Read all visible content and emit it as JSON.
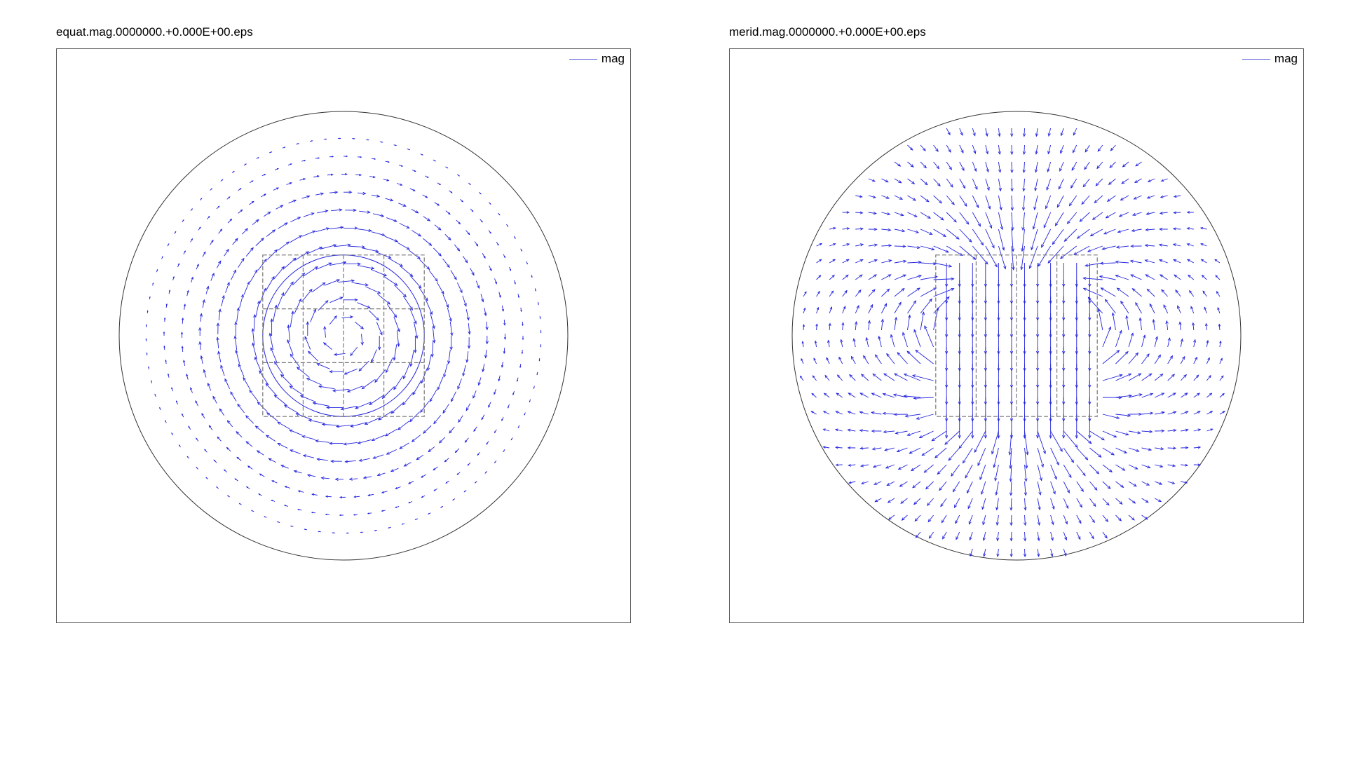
{
  "chart_data": [
    {
      "type": "quiver",
      "title": "equat.mag.0000000.+0.000E+00.eps",
      "legend": {
        "entries": [
          "mag"
        ],
        "placement": "top-right"
      },
      "series": [
        {
          "name": "mag",
          "color": "#2222dd"
        }
      ],
      "field": "azimuthal circulation around the sphere axis",
      "domain_circle_radius": 1.0,
      "inner_sphere_radius": 0.36,
      "box_outline": {
        "x": [
          -0.36,
          0.36
        ],
        "y": [
          -0.36,
          0.36
        ],
        "grid": [
          4,
          3
        ]
      },
      "grid": false
    },
    {
      "type": "quiver",
      "title": "merid.mag.0000000.+0.000E+00.eps",
      "legend": {
        "entries": [
          "mag"
        ],
        "placement": "top-right"
      },
      "series": [
        {
          "name": "mag",
          "color": "#2222dd"
        }
      ],
      "field": "vertical dipole-like field, strong downward inside box",
      "domain_circle_radius": 1.0,
      "box_outline": {
        "x": [
          -0.36,
          0.36
        ],
        "y": [
          -0.36,
          0.36
        ],
        "grid": [
          4,
          1
        ]
      },
      "grid": false
    }
  ]
}
